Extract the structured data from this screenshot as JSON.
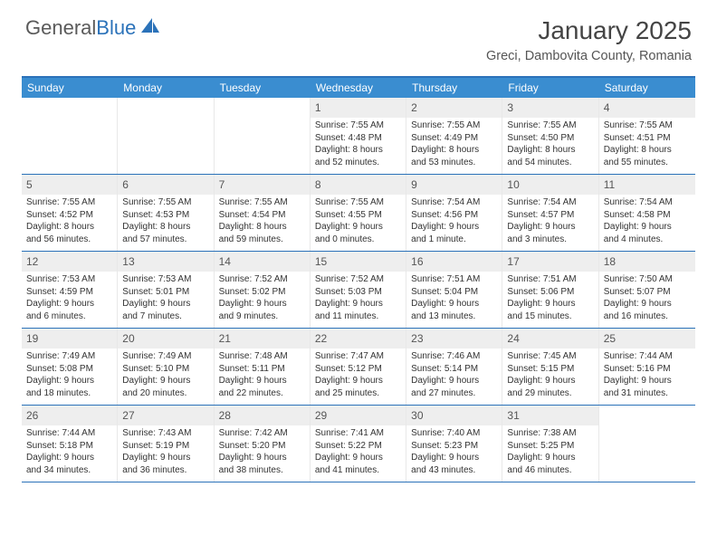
{
  "logo": {
    "text1": "General",
    "text2": "Blue"
  },
  "title": "January 2025",
  "location": "Greci, Dambovita County, Romania",
  "colors": {
    "accent": "#2b72b9",
    "header_bg": "#3a8dd0",
    "daynum_bg": "#eeeeee",
    "text": "#333333"
  },
  "dow": [
    "Sunday",
    "Monday",
    "Tuesday",
    "Wednesday",
    "Thursday",
    "Friday",
    "Saturday"
  ],
  "weeks": [
    [
      {
        "n": "",
        "l": [
          "",
          "",
          "",
          ""
        ]
      },
      {
        "n": "",
        "l": [
          "",
          "",
          "",
          ""
        ]
      },
      {
        "n": "",
        "l": [
          "",
          "",
          "",
          ""
        ]
      },
      {
        "n": "1",
        "l": [
          "Sunrise: 7:55 AM",
          "Sunset: 4:48 PM",
          "Daylight: 8 hours",
          "and 52 minutes."
        ]
      },
      {
        "n": "2",
        "l": [
          "Sunrise: 7:55 AM",
          "Sunset: 4:49 PM",
          "Daylight: 8 hours",
          "and 53 minutes."
        ]
      },
      {
        "n": "3",
        "l": [
          "Sunrise: 7:55 AM",
          "Sunset: 4:50 PM",
          "Daylight: 8 hours",
          "and 54 minutes."
        ]
      },
      {
        "n": "4",
        "l": [
          "Sunrise: 7:55 AM",
          "Sunset: 4:51 PM",
          "Daylight: 8 hours",
          "and 55 minutes."
        ]
      }
    ],
    [
      {
        "n": "5",
        "l": [
          "Sunrise: 7:55 AM",
          "Sunset: 4:52 PM",
          "Daylight: 8 hours",
          "and 56 minutes."
        ]
      },
      {
        "n": "6",
        "l": [
          "Sunrise: 7:55 AM",
          "Sunset: 4:53 PM",
          "Daylight: 8 hours",
          "and 57 minutes."
        ]
      },
      {
        "n": "7",
        "l": [
          "Sunrise: 7:55 AM",
          "Sunset: 4:54 PM",
          "Daylight: 8 hours",
          "and 59 minutes."
        ]
      },
      {
        "n": "8",
        "l": [
          "Sunrise: 7:55 AM",
          "Sunset: 4:55 PM",
          "Daylight: 9 hours",
          "and 0 minutes."
        ]
      },
      {
        "n": "9",
        "l": [
          "Sunrise: 7:54 AM",
          "Sunset: 4:56 PM",
          "Daylight: 9 hours",
          "and 1 minute."
        ]
      },
      {
        "n": "10",
        "l": [
          "Sunrise: 7:54 AM",
          "Sunset: 4:57 PM",
          "Daylight: 9 hours",
          "and 3 minutes."
        ]
      },
      {
        "n": "11",
        "l": [
          "Sunrise: 7:54 AM",
          "Sunset: 4:58 PM",
          "Daylight: 9 hours",
          "and 4 minutes."
        ]
      }
    ],
    [
      {
        "n": "12",
        "l": [
          "Sunrise: 7:53 AM",
          "Sunset: 4:59 PM",
          "Daylight: 9 hours",
          "and 6 minutes."
        ]
      },
      {
        "n": "13",
        "l": [
          "Sunrise: 7:53 AM",
          "Sunset: 5:01 PM",
          "Daylight: 9 hours",
          "and 7 minutes."
        ]
      },
      {
        "n": "14",
        "l": [
          "Sunrise: 7:52 AM",
          "Sunset: 5:02 PM",
          "Daylight: 9 hours",
          "and 9 minutes."
        ]
      },
      {
        "n": "15",
        "l": [
          "Sunrise: 7:52 AM",
          "Sunset: 5:03 PM",
          "Daylight: 9 hours",
          "and 11 minutes."
        ]
      },
      {
        "n": "16",
        "l": [
          "Sunrise: 7:51 AM",
          "Sunset: 5:04 PM",
          "Daylight: 9 hours",
          "and 13 minutes."
        ]
      },
      {
        "n": "17",
        "l": [
          "Sunrise: 7:51 AM",
          "Sunset: 5:06 PM",
          "Daylight: 9 hours",
          "and 15 minutes."
        ]
      },
      {
        "n": "18",
        "l": [
          "Sunrise: 7:50 AM",
          "Sunset: 5:07 PM",
          "Daylight: 9 hours",
          "and 16 minutes."
        ]
      }
    ],
    [
      {
        "n": "19",
        "l": [
          "Sunrise: 7:49 AM",
          "Sunset: 5:08 PM",
          "Daylight: 9 hours",
          "and 18 minutes."
        ]
      },
      {
        "n": "20",
        "l": [
          "Sunrise: 7:49 AM",
          "Sunset: 5:10 PM",
          "Daylight: 9 hours",
          "and 20 minutes."
        ]
      },
      {
        "n": "21",
        "l": [
          "Sunrise: 7:48 AM",
          "Sunset: 5:11 PM",
          "Daylight: 9 hours",
          "and 22 minutes."
        ]
      },
      {
        "n": "22",
        "l": [
          "Sunrise: 7:47 AM",
          "Sunset: 5:12 PM",
          "Daylight: 9 hours",
          "and 25 minutes."
        ]
      },
      {
        "n": "23",
        "l": [
          "Sunrise: 7:46 AM",
          "Sunset: 5:14 PM",
          "Daylight: 9 hours",
          "and 27 minutes."
        ]
      },
      {
        "n": "24",
        "l": [
          "Sunrise: 7:45 AM",
          "Sunset: 5:15 PM",
          "Daylight: 9 hours",
          "and 29 minutes."
        ]
      },
      {
        "n": "25",
        "l": [
          "Sunrise: 7:44 AM",
          "Sunset: 5:16 PM",
          "Daylight: 9 hours",
          "and 31 minutes."
        ]
      }
    ],
    [
      {
        "n": "26",
        "l": [
          "Sunrise: 7:44 AM",
          "Sunset: 5:18 PM",
          "Daylight: 9 hours",
          "and 34 minutes."
        ]
      },
      {
        "n": "27",
        "l": [
          "Sunrise: 7:43 AM",
          "Sunset: 5:19 PM",
          "Daylight: 9 hours",
          "and 36 minutes."
        ]
      },
      {
        "n": "28",
        "l": [
          "Sunrise: 7:42 AM",
          "Sunset: 5:20 PM",
          "Daylight: 9 hours",
          "and 38 minutes."
        ]
      },
      {
        "n": "29",
        "l": [
          "Sunrise: 7:41 AM",
          "Sunset: 5:22 PM",
          "Daylight: 9 hours",
          "and 41 minutes."
        ]
      },
      {
        "n": "30",
        "l": [
          "Sunrise: 7:40 AM",
          "Sunset: 5:23 PM",
          "Daylight: 9 hours",
          "and 43 minutes."
        ]
      },
      {
        "n": "31",
        "l": [
          "Sunrise: 7:38 AM",
          "Sunset: 5:25 PM",
          "Daylight: 9 hours",
          "and 46 minutes."
        ]
      },
      {
        "n": "",
        "l": [
          "",
          "",
          "",
          ""
        ]
      }
    ]
  ]
}
